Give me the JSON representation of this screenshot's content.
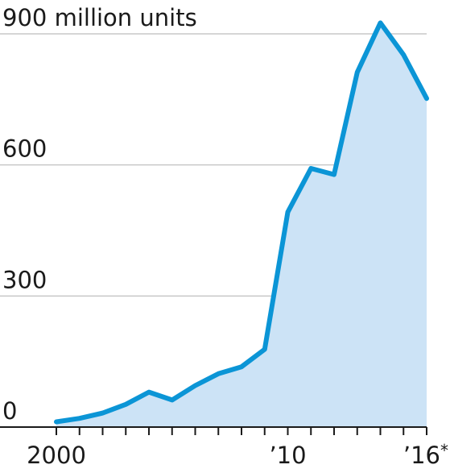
{
  "chart_data": {
    "type": "area",
    "x": [
      2000,
      2001,
      2002,
      2003,
      2004,
      2005,
      2006,
      2007,
      2008,
      2009,
      2010,
      2011,
      2012,
      2013,
      2014,
      2015,
      2016
    ],
    "series": [
      {
        "values": [
          12,
          20,
          32,
          52,
          80,
          62,
          95,
          122,
          138,
          178,
          492,
          592,
          578,
          812,
          925,
          852,
          752
        ],
        "color": "#0b95d6",
        "fill": "#cce3f6"
      }
    ],
    "y_ticks": [
      {
        "value": 900,
        "label": "900",
        "suffix": " million units"
      },
      {
        "value": 600,
        "label": "600"
      },
      {
        "value": 300,
        "label": "300"
      },
      {
        "value": 0,
        "label": "0"
      }
    ],
    "x_ticks": [
      {
        "value": 2000,
        "label": "2000",
        "note": ""
      },
      {
        "value": 2010,
        "label": "’10",
        "note": ""
      },
      {
        "value": 2016,
        "label": "’16",
        "note": "*"
      }
    ],
    "ylim": [
      0,
      900
    ],
    "xlim": [
      2000,
      2016
    ],
    "grid": true,
    "title": "",
    "xlabel": "",
    "ylabel": ""
  }
}
